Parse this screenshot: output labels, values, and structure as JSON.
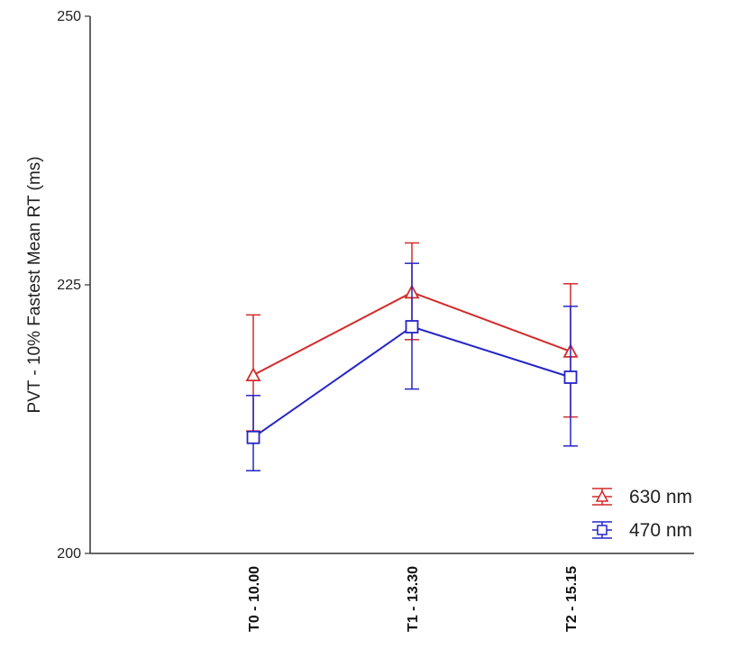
{
  "chart_data": {
    "type": "line",
    "ylabel": "PVT - 10% Fastest Mean RT (ms)",
    "xlabel": "",
    "ylim": [
      200,
      250
    ],
    "yticks": [
      200,
      225,
      250
    ],
    "categories": [
      "T0 - 10.00",
      "T1 - 13.30",
      "T2 - 15.15"
    ],
    "legend_position": "bottom-right",
    "grid": false,
    "series": [
      {
        "name": "630 nm",
        "color": "#d42a2a",
        "marker": "triangle",
        "values": [
          216.6,
          224.3,
          218.8
        ],
        "err_low": [
          211.4,
          219.9,
          212.7
        ],
        "err_high": [
          222.2,
          228.9,
          225.1
        ]
      },
      {
        "name": "470 nm",
        "color": "#2525c8",
        "marker": "square",
        "values": [
          210.8,
          221.1,
          216.4
        ],
        "err_low": [
          207.7,
          215.3,
          210.0
        ],
        "err_high": [
          214.7,
          227.0,
          223.0
        ]
      }
    ]
  }
}
